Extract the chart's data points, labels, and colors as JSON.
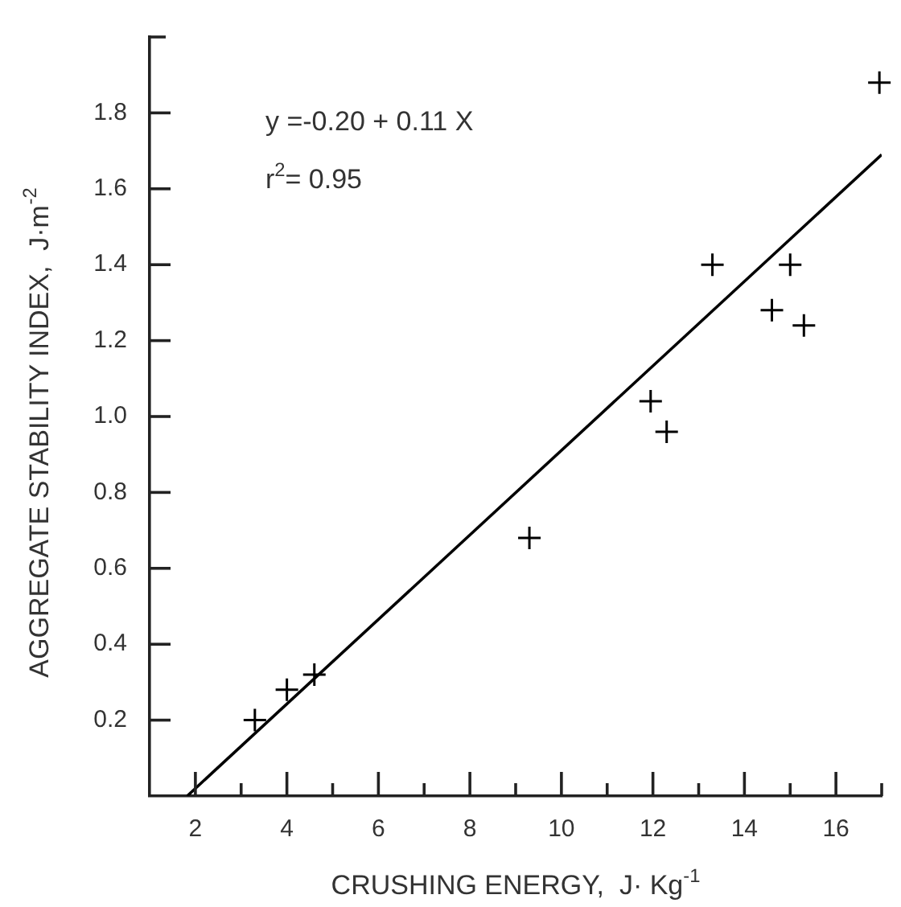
{
  "chart_data": {
    "type": "scatter",
    "xlabel": "CRUSHING ENERGY,  J· Kg$^{-1}$",
    "ylabel": "AGGREGATE STABILITY INDEX,  J·m$^{-2}$",
    "annotations": [
      "y =-0.20 + 0.11 X",
      "r$^{2}$= 0.95"
    ],
    "xlim": [
      1,
      17
    ],
    "ylim": [
      0,
      2
    ],
    "xticks": [
      2,
      {
        "value": 3,
        "label": null
      },
      4,
      {
        "value": 5,
        "label": null
      },
      6,
      {
        "value": 7,
        "label": null
      },
      8,
      {
        "value": 9,
        "label": null
      },
      10,
      {
        "value": 11,
        "label": null
      },
      12,
      {
        "value": 13,
        "label": null
      },
      14,
      {
        "value": 15,
        "label": null
      },
      16,
      {
        "value": 17,
        "label": null
      }
    ],
    "yticks": [
      0.2,
      0.4,
      0.6,
      0.8,
      {
        "value": 1,
        "label": "1.0"
      },
      1.2,
      1.4,
      1.6,
      1.8,
      {
        "value": 2,
        "label": null
      }
    ],
    "line_style": "solid",
    "series": [
      {
        "marker": "cross",
        "color": "#000000",
        "x": [
          3.3,
          4.0,
          4.6,
          9.3,
          12.3,
          11.95,
          13.3,
          15.0,
          14.6,
          15.3,
          16.95
        ],
        "values": [
          0.2,
          0.28,
          0.32,
          0.68,
          0.96,
          1.04,
          1.4,
          1.4,
          1.28,
          1.24,
          1.88
        ]
      },
      {
        "type": "line",
        "color": "#000000",
        "x": [
          1.82,
          17
        ],
        "values": [
          0,
          1.69
        ]
      }
    ]
  }
}
